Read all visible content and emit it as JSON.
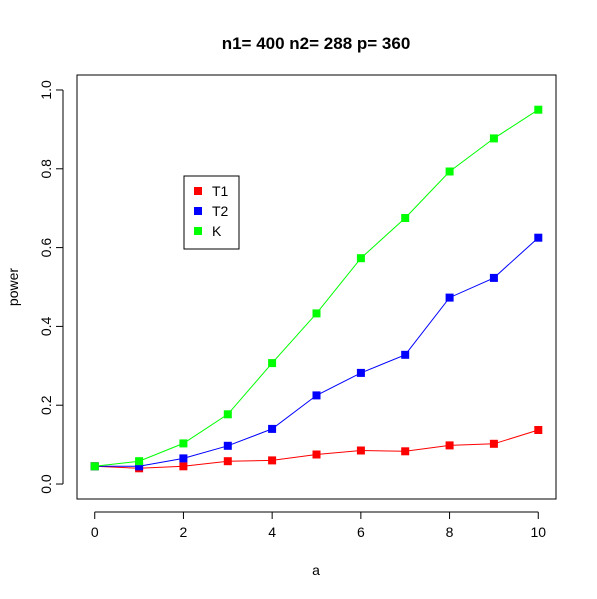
{
  "chart_data": {
    "type": "line",
    "title": "n1= 400 n2= 288 p= 360",
    "xlabel": "a",
    "ylabel": "power",
    "x": [
      0,
      1,
      2,
      3,
      4,
      5,
      6,
      7,
      8,
      9,
      10
    ],
    "xlim": [
      -0.4,
      10.4
    ],
    "ylim": [
      -0.038,
      1.038
    ],
    "x_ticks": [
      0,
      2,
      4,
      6,
      8,
      10
    ],
    "y_ticks": [
      0.0,
      0.2,
      0.4,
      0.6,
      0.8,
      1.0
    ],
    "x_tick_labels": [
      "0",
      "2",
      "4",
      "6",
      "8",
      "10"
    ],
    "y_tick_labels": [
      "0.0",
      "0.2",
      "0.4",
      "0.6",
      "0.8",
      "1.0"
    ],
    "grid": false,
    "legend": {
      "placement": "upper-left",
      "entries": [
        "T1",
        "T2",
        "K"
      ]
    },
    "series": [
      {
        "name": "T1",
        "color": "#ff0000",
        "marker": "square",
        "values": [
          0.045,
          0.04,
          0.045,
          0.058,
          0.06,
          0.075,
          0.085,
          0.083,
          0.098,
          0.102,
          0.137
        ]
      },
      {
        "name": "T2",
        "color": "#0000ff",
        "marker": "square",
        "values": [
          0.045,
          0.045,
          0.065,
          0.097,
          0.14,
          0.225,
          0.282,
          0.328,
          0.473,
          0.523,
          0.625
        ]
      },
      {
        "name": "K",
        "color": "#00ff00",
        "marker": "square",
        "values": [
          0.045,
          0.058,
          0.103,
          0.177,
          0.307,
          0.433,
          0.573,
          0.675,
          0.793,
          0.877,
          0.95
        ]
      }
    ]
  }
}
